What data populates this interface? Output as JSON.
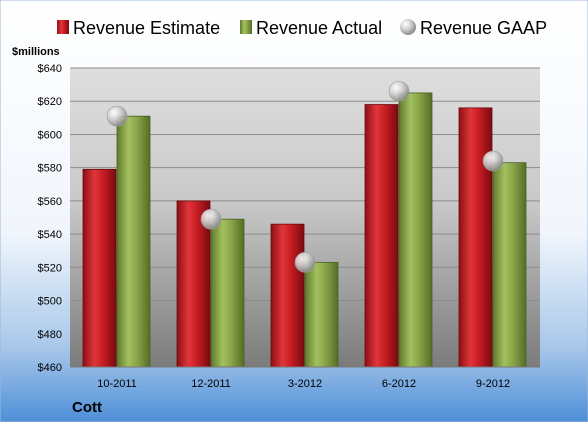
{
  "chart_data": {
    "type": "bar",
    "categories": [
      "10-2011",
      "12-2011",
      "3-2012",
      "6-2012",
      "9-2012"
    ],
    "series": [
      {
        "name": "Revenue Estimate",
        "values": [
          579,
          560,
          546,
          618,
          616
        ],
        "color": "#cc1f26"
      },
      {
        "name": "Revenue Actual",
        "values": [
          611,
          549,
          523,
          625,
          583
        ],
        "color": "#8aa64a"
      },
      {
        "name": "Revenue GAAP",
        "values": [
          611,
          549,
          523,
          626,
          584
        ],
        "color": "#c8c8c8",
        "marker": "sphere"
      }
    ],
    "ylabel": "$millions",
    "ylim": [
      460,
      640
    ],
    "yticks": [
      "$460",
      "$480",
      "$500",
      "$520",
      "$540",
      "$560",
      "$580",
      "$600",
      "$620",
      "$640"
    ],
    "grid": true,
    "legend": "top"
  },
  "company": "Cott"
}
